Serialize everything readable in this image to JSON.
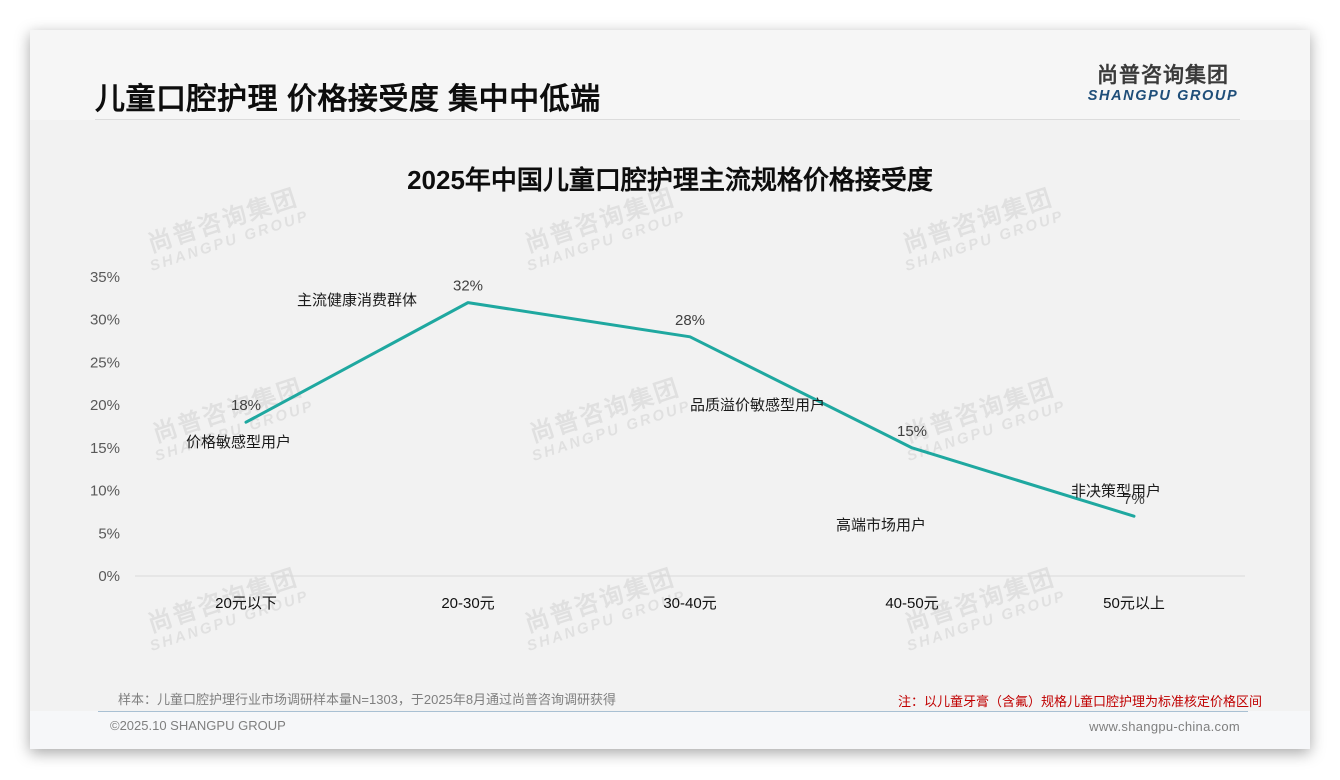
{
  "slide": {
    "title": "儿童口腔护理 价格接受度 集中中低端"
  },
  "logo": {
    "cn": "尚普咨询集团",
    "en": "SHANGPU GROUP"
  },
  "watermark": {
    "cn": "尚普咨询集团",
    "en": "SHANGPU GROUP"
  },
  "chart_data": {
    "type": "line",
    "title": "2025年中国儿童口腔护理主流规格价格接受度",
    "xlabel": "",
    "ylabel": "",
    "categories": [
      "20元以下",
      "20-30元",
      "30-40元",
      "40-50元",
      "50元以上"
    ],
    "values": [
      18,
      32,
      28,
      15,
      7
    ],
    "data_labels": [
      "18%",
      "32%",
      "28%",
      "15%",
      "7%"
    ],
    "ylim": [
      0,
      35
    ],
    "y_ticks": [
      0,
      5,
      10,
      15,
      20,
      25,
      30,
      35
    ],
    "y_tick_labels": [
      "0%",
      "5%",
      "10%",
      "15%",
      "20%",
      "25%",
      "30%",
      "35%"
    ],
    "grid": false,
    "legend": null,
    "color": "#1fa8a0",
    "annotations": [
      {
        "category": "20元以下",
        "text": "价格敏感型用户"
      },
      {
        "category": "20-30元",
        "text": "主流健康消费群体"
      },
      {
        "category": "30-40元",
        "text": "品质溢价敏感型用户"
      },
      {
        "category": "40-50元",
        "text": "高端市场用户"
      },
      {
        "category": "50元以上",
        "text": "非决策型用户"
      }
    ]
  },
  "footer": {
    "sample": "样本：儿童口腔护理行业市场调研样本量N=1303，于2025年8月通过尚普咨询调研获得",
    "note": "注：以儿童牙膏（含氟）规格儿童口腔护理为标准核定价格区间",
    "copyright": "©2025.10 SHANGPU GROUP",
    "website": "www.shangpu-china.com"
  }
}
